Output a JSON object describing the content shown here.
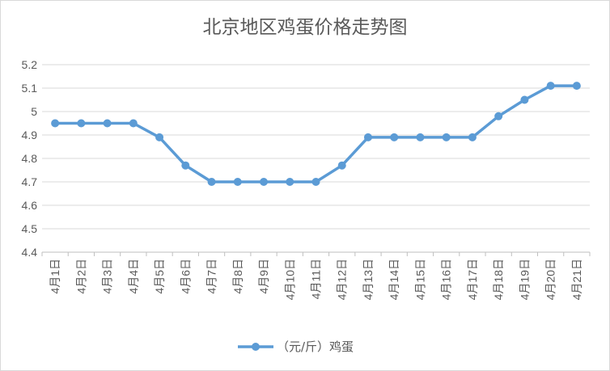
{
  "chart_data": {
    "type": "line",
    "title": "北京地区鸡蛋价格走势图",
    "xlabel": "",
    "ylabel": "",
    "ylim": [
      4.4,
      5.2
    ],
    "yticks": [
      4.4,
      4.5,
      4.6,
      4.7,
      4.8,
      4.9,
      5,
      5.1,
      5.2
    ],
    "grid": true,
    "legend_position": "bottom",
    "series_color": "#5b9bd5",
    "categories": [
      "4月1日",
      "4月2日",
      "4月3日",
      "4月4日",
      "4月5日",
      "4月6日",
      "4月7日",
      "4月8日",
      "4月9日",
      "4月10日",
      "4月11日",
      "4月12日",
      "4月13日",
      "4月14日",
      "4月15日",
      "4月16日",
      "4月17日",
      "4月18日",
      "4月19日",
      "4月20日",
      "4月21日"
    ],
    "series": [
      {
        "name": "（元/斤）鸡蛋",
        "values": [
          4.95,
          4.95,
          4.95,
          4.95,
          4.89,
          4.77,
          4.7,
          4.7,
          4.7,
          4.7,
          4.7,
          4.77,
          4.89,
          4.89,
          4.89,
          4.89,
          4.89,
          4.98,
          5.05,
          5.11,
          5.11
        ]
      }
    ]
  }
}
